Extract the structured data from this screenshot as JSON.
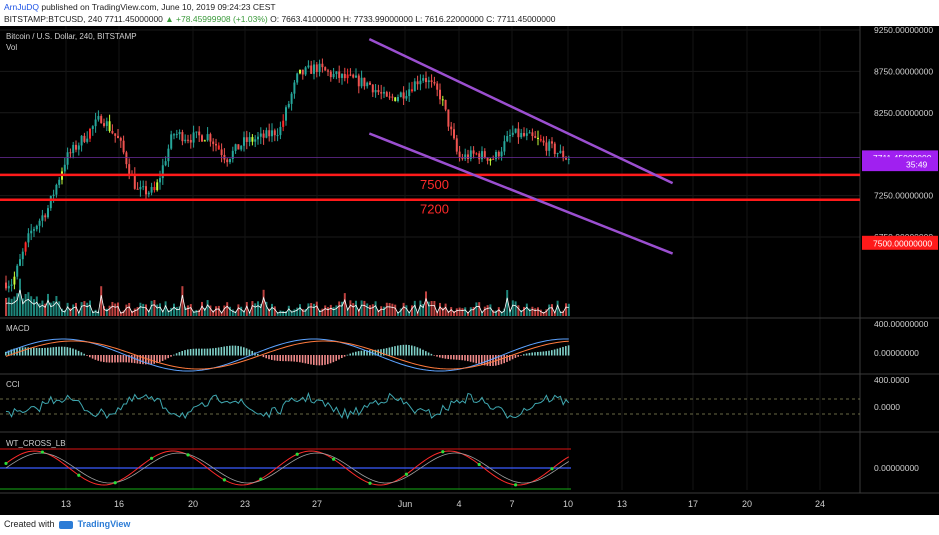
{
  "header": {
    "author": "ArnJuDQ",
    "published": "published on TradingView.com, June 10, 2019 09:24:23 CEST",
    "symbol_line": "BITSTAMP:BTCUSD, 240  7711.45000000",
    "change": "▲ +78.45999908 (+1.03%)",
    "ohlc": "O: 7663.41000000  H: 7733.99000000  L: 7616.22000000  C: 7711.45000000"
  },
  "main_pane": {
    "title": "Bitcoin / U.S. Dollar, 240, BITSTAMP",
    "vol_label": "Vol"
  },
  "footer": {
    "created_with": "Created with",
    "brand": "TradingView"
  },
  "colors": {
    "bull": "#26a69a",
    "bear": "#ef5350",
    "bright_green": "#c7ff3a",
    "bright_red": "#ff2a2a",
    "channel": "#9b4fd0",
    "level_line": "#ff1a1a",
    "level_text": "#ff2a2a",
    "macd_line": "#5da3ff",
    "signal_line": "#ff7a3d",
    "cci_line": "#3fa7b0",
    "wt_red": "#ff2a2a",
    "wt_blue": "#3b5bff",
    "wt_green": "#2bdc3a"
  },
  "chart_data": {
    "type": "candlestick",
    "price_axis": {
      "ticks": [
        {
          "value": 9250,
          "label": "9250.00000000"
        },
        {
          "value": 8750,
          "label": "8750.00000000"
        },
        {
          "value": 8250,
          "label": "8250.00000000"
        },
        {
          "value": 7250,
          "label": "7250.00000000"
        },
        {
          "value": 6750,
          "label": "6750.00000000"
        }
      ],
      "badges": [
        {
          "value": 7711.45,
          "label": "7711.45000000",
          "color": "#a020f0"
        },
        {
          "value": 7630,
          "label": "35:49",
          "color": "#a020f0"
        },
        {
          "value": 6680,
          "label": "7500.00000000",
          "color": "#ff1a1a"
        }
      ]
    },
    "x_axis": [
      "13",
      "16",
      "20",
      "23",
      "27",
      "Jun",
      "4",
      "7",
      "10",
      "13",
      "17",
      "20",
      "24"
    ],
    "horizontal_levels": [
      {
        "value": 7500,
        "label": "7500"
      },
      {
        "value": 7200,
        "label": "7200"
      }
    ],
    "last_price": 7711.45,
    "channel": {
      "upper": [
        {
          "date": "2019-05-30",
          "price": 9140
        },
        {
          "date": "2019-06-16",
          "price": 7400
        }
      ],
      "lower": [
        {
          "date": "2019-05-30",
          "price": 8000
        },
        {
          "date": "2019-06-16",
          "price": 6550
        }
      ]
    },
    "close_path": [
      {
        "date": "2019-05-10",
        "price": 6200
      },
      {
        "date": "2019-05-11",
        "price": 6800
      },
      {
        "date": "2019-05-12",
        "price": 7100
      },
      {
        "date": "2019-05-13",
        "price": 7700
      },
      {
        "date": "2019-05-14",
        "price": 7950
      },
      {
        "date": "2019-05-15",
        "price": 8200
      },
      {
        "date": "2019-05-16",
        "price": 7900
      },
      {
        "date": "2019-05-17",
        "price": 7300
      },
      {
        "date": "2019-05-18",
        "price": 7300
      },
      {
        "date": "2019-05-19",
        "price": 8000
      },
      {
        "date": "2019-05-20",
        "price": 7950
      },
      {
        "date": "2019-05-21",
        "price": 7980
      },
      {
        "date": "2019-05-22",
        "price": 7700
      },
      {
        "date": "2019-05-23",
        "price": 7900
      },
      {
        "date": "2019-05-24",
        "price": 7950
      },
      {
        "date": "2019-05-25",
        "price": 8050
      },
      {
        "date": "2019-05-26",
        "price": 8700
      },
      {
        "date": "2019-05-27",
        "price": 8800
      },
      {
        "date": "2019-05-28",
        "price": 8700
      },
      {
        "date": "2019-05-29",
        "price": 8650
      },
      {
        "date": "2019-05-30",
        "price": 8600
      },
      {
        "date": "2019-05-31",
        "price": 8400
      },
      {
        "date": "2019-06-01",
        "price": 8500
      },
      {
        "date": "2019-06-02",
        "price": 8700
      },
      {
        "date": "2019-06-03",
        "price": 8450
      },
      {
        "date": "2019-06-04",
        "price": 7700
      },
      {
        "date": "2019-06-05",
        "price": 7750
      },
      {
        "date": "2019-06-06",
        "price": 7700
      },
      {
        "date": "2019-06-07",
        "price": 8000
      },
      {
        "date": "2019-06-08",
        "price": 7950
      },
      {
        "date": "2019-06-09",
        "price": 7850
      },
      {
        "date": "2019-06-10",
        "price": 7711
      }
    ],
    "panes": [
      {
        "name": "MACD",
        "ticks": [
          "400.00000000",
          "0.00000000"
        ]
      },
      {
        "name": "CCI",
        "ticks": [
          "400.0000",
          "0.0000"
        ]
      },
      {
        "name": "WT_CROSS_LB",
        "ticks": [
          "0.00000000"
        ]
      }
    ]
  }
}
